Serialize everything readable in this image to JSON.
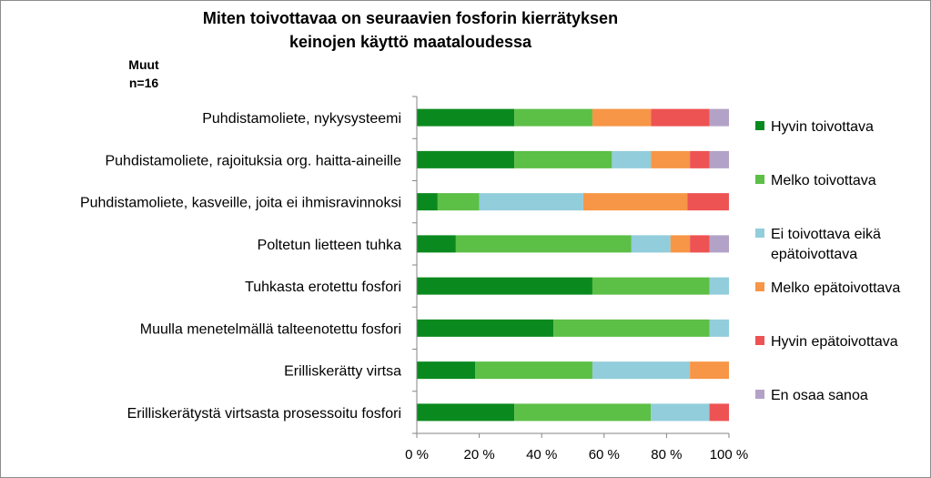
{
  "chart_data": {
    "type": "bar",
    "orientation": "horizontal",
    "stacked": "percent",
    "title": "Miten toivottavaa on seuraavien fosforin kierrätyksen keinojen käyttö maataloudessa",
    "title_lines": [
      "Miten toivottavaa on seuraavien fosforin kierrätyksen",
      "keinojen käyttö maataloudessa"
    ],
    "subgroup_lines": [
      "Muut",
      "n=16"
    ],
    "categories": [
      "Puhdistamoliete, nykysysteemi",
      "Puhdistamoliete, rajoituksia org. haitta-aineille",
      "Puhdistamoliete, kasveille, joita ei  ihmisravinnoksi",
      "Poltetun lietteen tuhka",
      "Tuhkasta erotettu fosfori",
      "Muulla menetelmällä talteenotettu fosfori",
      "Erilliskerätty virtsa",
      "Erilliskerätystä virtsasta prosessoitu fosfori"
    ],
    "series": [
      {
        "name": "Hyvin toivottava",
        "color": "#0a8a1e",
        "values": [
          31.25,
          31.25,
          6.67,
          12.5,
          56.25,
          43.75,
          18.75,
          31.25
        ]
      },
      {
        "name": "Melko toivottava",
        "color": "#5cbf46",
        "values": [
          25.0,
          31.25,
          13.33,
          56.25,
          37.5,
          50.0,
          37.5,
          43.75
        ]
      },
      {
        "name": "Ei toivottava eikä epätoivottava",
        "color": "#92cddc",
        "values": [
          0,
          12.5,
          33.33,
          12.5,
          6.25,
          6.25,
          31.25,
          18.75
        ]
      },
      {
        "name": "Melko epätoivottava",
        "color": "#f79646",
        "values": [
          18.75,
          12.5,
          33.33,
          6.25,
          0,
          0,
          12.5,
          0
        ]
      },
      {
        "name": "Hyvin epätoivottava",
        "color": "#ee5353",
        "values": [
          18.75,
          6.25,
          13.33,
          6.25,
          0,
          0,
          0,
          6.25
        ]
      },
      {
        "name": "En osaa sanoa",
        "color": "#b3a2c7",
        "values": [
          6.25,
          6.25,
          0,
          6.25,
          0,
          0,
          0,
          0
        ]
      }
    ],
    "legend_lines": [
      [
        "Hyvin toivottava"
      ],
      [
        "Melko toivottava"
      ],
      [
        "Ei toivottava eikä",
        "epätoivottava"
      ],
      [
        "Melko epätoivottava"
      ],
      [
        "Hyvin epätoivottava"
      ],
      [
        "En osaa sanoa"
      ]
    ],
    "xlim": [
      0,
      100
    ],
    "xticks": [
      "0 %",
      "20 %",
      "40 %",
      "60 %",
      "80 %",
      "100 %"
    ],
    "grid": false,
    "legend_position": "right"
  }
}
